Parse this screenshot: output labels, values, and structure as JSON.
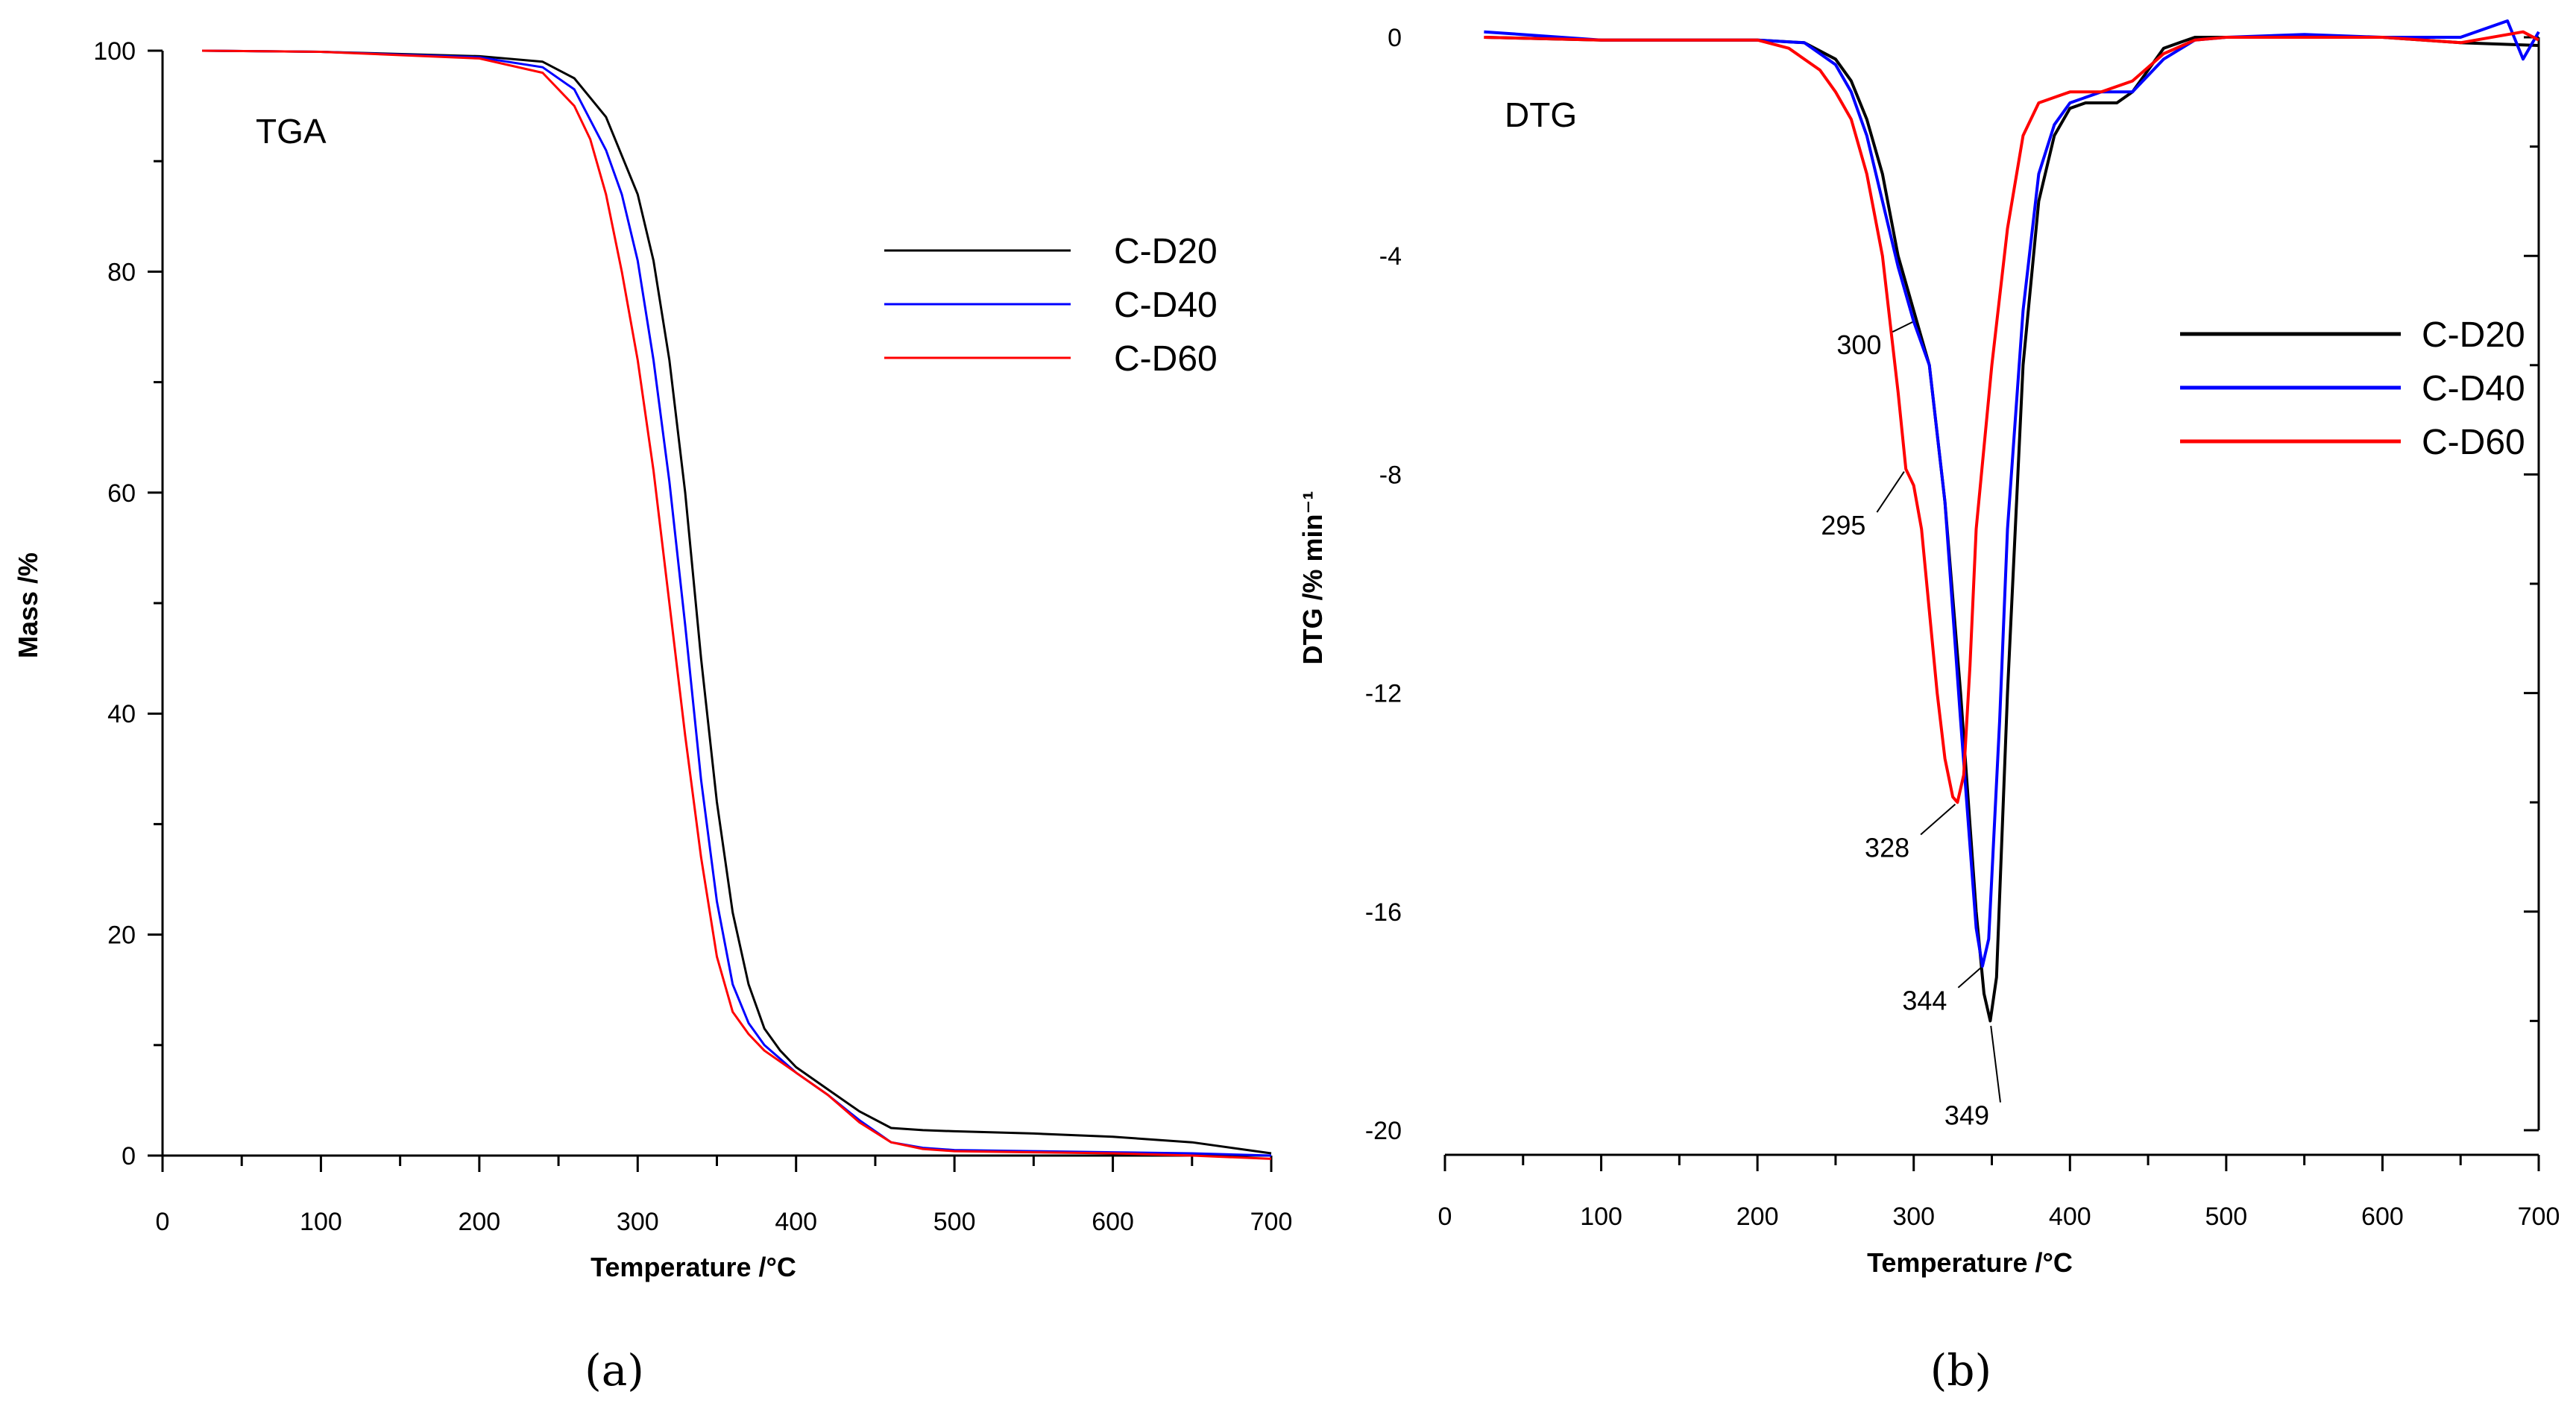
{
  "chart_data": [
    {
      "type": "line",
      "panel": "(a)",
      "title": "TGA",
      "xlabel": "Temperature /°C",
      "ylabel": "Mass /%",
      "xlim": [
        0,
        700
      ],
      "ylim": [
        0,
        100
      ],
      "xticks": [
        0,
        100,
        200,
        300,
        400,
        500,
        600,
        700
      ],
      "yticks": [
        0,
        20,
        40,
        60,
        80,
        100
      ],
      "legend_position": "upper-right",
      "series": [
        {
          "name": "C-D20",
          "color": "#000000",
          "x": [
            25,
            100,
            200,
            240,
            260,
            280,
            300,
            310,
            320,
            330,
            340,
            350,
            360,
            370,
            380,
            390,
            400,
            420,
            440,
            460,
            480,
            500,
            550,
            600,
            650,
            700
          ],
          "y": [
            100,
            99.9,
            99.5,
            99,
            97.5,
            94,
            87,
            81,
            72,
            60,
            45,
            32,
            22,
            15.5,
            11.5,
            9.5,
            8,
            6,
            4,
            2.5,
            2.3,
            2.2,
            2,
            1.7,
            1.2,
            0.2
          ]
        },
        {
          "name": "C-D40",
          "color": "#0000ff",
          "x": [
            25,
            100,
            200,
            240,
            260,
            280,
            290,
            300,
            310,
            320,
            330,
            340,
            350,
            360,
            370,
            380,
            400,
            420,
            440,
            460,
            480,
            500,
            550,
            600,
            650,
            700
          ],
          "y": [
            100,
            99.9,
            99.4,
            98.5,
            96.5,
            91,
            87,
            81,
            72,
            61,
            48,
            34,
            23,
            15.5,
            12,
            10,
            7.5,
            5.5,
            3.2,
            1.2,
            0.7,
            0.5,
            0.4,
            0.3,
            0.2,
            0
          ]
        },
        {
          "name": "C-D60",
          "color": "#ff0000",
          "x": [
            25,
            100,
            200,
            240,
            260,
            270,
            280,
            290,
            300,
            310,
            320,
            330,
            340,
            350,
            360,
            370,
            380,
            400,
            420,
            440,
            460,
            480,
            500,
            550,
            600,
            650,
            700
          ],
          "y": [
            100,
            99.9,
            99.3,
            98,
            95,
            92,
            87,
            80,
            72,
            62,
            50,
            38,
            27,
            18,
            13,
            11,
            9.5,
            7.5,
            5.5,
            3,
            1.2,
            0.6,
            0.4,
            0.3,
            0.2,
            0,
            -0.3
          ]
        }
      ]
    },
    {
      "type": "line",
      "panel": "(b)",
      "title": "DTG",
      "xlabel": "Temperature /°C",
      "ylabel": "DTG /% min⁻¹",
      "xlim": [
        0,
        700
      ],
      "ylim": [
        -20,
        0
      ],
      "xticks": [
        0,
        100,
        200,
        300,
        400,
        500,
        600,
        700
      ],
      "yticks": [
        0,
        -4,
        -8,
        -12,
        -16,
        -20
      ],
      "legend_position": "right",
      "annotations": [
        {
          "text": "300",
          "x": 300,
          "y": -5.2,
          "label_x": 265,
          "label_y": -5.8
        },
        {
          "text": "295",
          "x": 295,
          "y": -7.9,
          "label_x": 255,
          "label_y": -9.1
        },
        {
          "text": "328",
          "x": 328,
          "y": -14,
          "label_x": 283,
          "label_y": -15
        },
        {
          "text": "344",
          "x": 344,
          "y": -17,
          "label_x": 307,
          "label_y": -17.8
        },
        {
          "text": "349",
          "x": 349,
          "y": -18,
          "label_x": 334,
          "label_y": -19.9
        }
      ],
      "series": [
        {
          "name": "C-D20",
          "color": "#000000",
          "x": [
            25,
            100,
            200,
            230,
            250,
            260,
            270,
            280,
            290,
            300,
            310,
            320,
            330,
            340,
            345,
            349,
            353,
            360,
            370,
            380,
            390,
            400,
            410,
            420,
            430,
            440,
            450,
            460,
            470,
            480,
            500,
            550,
            600,
            650,
            700
          ],
          "y": [
            0,
            -0.05,
            -0.05,
            -0.1,
            -0.4,
            -0.8,
            -1.5,
            -2.5,
            -4,
            -5,
            -6,
            -8.5,
            -12,
            -16,
            -17.5,
            -18,
            -17.2,
            -12,
            -6,
            -3,
            -1.8,
            -1.3,
            -1.2,
            -1.2,
            -1.2,
            -1,
            -0.6,
            -0.2,
            -0.1,
            0,
            0,
            0,
            0,
            -0.1,
            -0.15
          ]
        },
        {
          "name": "C-D40",
          "color": "#0000ff",
          "x": [
            25,
            100,
            200,
            230,
            250,
            260,
            270,
            280,
            290,
            300,
            310,
            320,
            330,
            340,
            344,
            348,
            355,
            360,
            370,
            380,
            390,
            400,
            420,
            440,
            460,
            480,
            500,
            550,
            600,
            650,
            680,
            690,
            700
          ],
          "y": [
            0.1,
            -0.05,
            -0.05,
            -0.1,
            -0.5,
            -1,
            -1.8,
            -3,
            -4.2,
            -5.2,
            -6,
            -8.5,
            -12.5,
            -16.3,
            -17,
            -16.5,
            -12.5,
            -9,
            -5,
            -2.5,
            -1.6,
            -1.2,
            -1,
            -1,
            -0.4,
            -0.05,
            0,
            0.05,
            0,
            0,
            0.3,
            -0.4,
            0.1
          ]
        },
        {
          "name": "C-D60",
          "color": "#ff0000",
          "x": [
            25,
            100,
            200,
            220,
            240,
            250,
            260,
            270,
            280,
            290,
            295,
            300,
            305,
            310,
            315,
            320,
            325,
            328,
            332,
            336,
            340,
            350,
            360,
            370,
            380,
            390,
            400,
            420,
            440,
            460,
            480,
            500,
            550,
            600,
            650,
            690,
            700
          ],
          "y": [
            0,
            -0.05,
            -0.05,
            -0.2,
            -0.6,
            -1,
            -1.5,
            -2.5,
            -4,
            -6.5,
            -7.9,
            -8.2,
            -9,
            -10.5,
            -12,
            -13.2,
            -13.9,
            -14,
            -13.5,
            -11.5,
            -9,
            -6,
            -3.5,
            -1.8,
            -1.2,
            -1.1,
            -1,
            -1,
            -0.8,
            -0.3,
            -0.05,
            0,
            0,
            0,
            -0.1,
            0.1,
            -0.05
          ]
        }
      ]
    }
  ],
  "captions": [
    "(a)",
    "(b)"
  ]
}
